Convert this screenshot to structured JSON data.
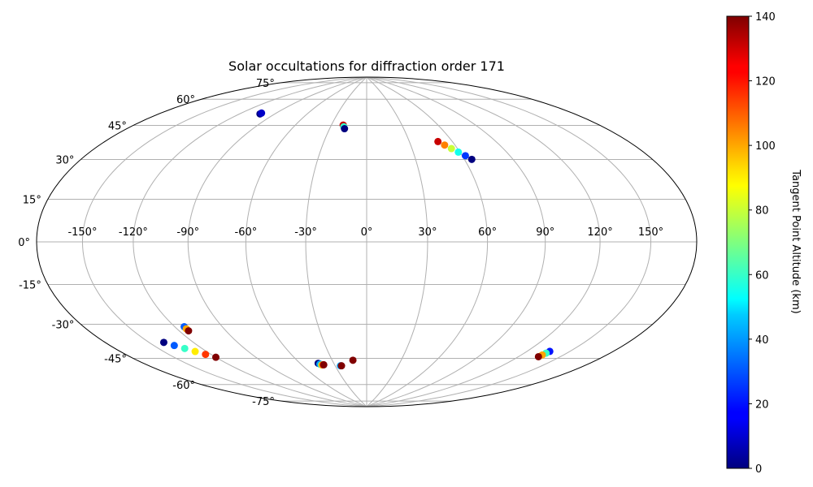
{
  "chart_data": {
    "type": "scatter",
    "projection": "hammer",
    "title": "Solar occultations for diffraction order 171",
    "grid": true,
    "lon_ticks": [
      "-150°",
      "-120°",
      "-90°",
      "-60°",
      "-30°",
      "0°",
      "30°",
      "60°",
      "90°",
      "120°",
      "150°"
    ],
    "lat_ticks": [
      "75°",
      "60°",
      "45°",
      "30°",
      "15°",
      "0°",
      "-15°",
      "-30°",
      "-45°",
      "-60°",
      "-75°"
    ],
    "colorbar": {
      "label": "Tangent Point Altitude (km)",
      "colormap": "jet",
      "range": [
        0,
        140
      ],
      "ticks": [
        "0",
        "20",
        "40",
        "60",
        "80",
        "100",
        "120",
        "140"
      ]
    },
    "series": [
      {
        "lon": [
          -103,
          -103
        ],
        "lat": [
          62,
          62.5
        ],
        "altitude": [
          0,
          10
        ]
      },
      {
        "lon": [
          -20,
          -19,
          -18
        ],
        "lat": [
          60,
          59,
          58
        ],
        "altitude": [
          130,
          60,
          0
        ]
      },
      {
        "lon": [
          50,
          53,
          56,
          59,
          62,
          64.5
        ],
        "lat": [
          50,
          48,
          46,
          44,
          42,
          40
        ],
        "altitude": [
          130,
          105,
          80,
          55,
          25,
          0
        ]
      },
      {
        "lon": [
          -140,
          -136,
          -132,
          -128,
          -124,
          -120
        ],
        "lat": [
          -43,
          -45,
          -47,
          -49,
          -51,
          -53
        ],
        "altitude": [
          0,
          30,
          60,
          90,
          115,
          140
        ]
      },
      {
        "lon": [
          -114,
          -114,
          -114
        ],
        "lat": [
          -38,
          -39,
          -40
        ],
        "altitude": [
          30,
          100,
          140
        ]
      },
      {
        "lon": [
          -44,
          -43,
          -42,
          -41,
          -40
        ],
        "lat": [
          -62,
          -62.5,
          -63,
          -63,
          -63
        ],
        "altitude": [
          0,
          40,
          80,
          110,
          140
        ]
      },
      {
        "lon": [
          -25,
          -24
        ],
        "lat": [
          -64,
          -64
        ],
        "altitude": [
          40,
          140
        ]
      },
      {
        "lon": [
          -12
        ],
        "lat": [
          -61
        ],
        "altitude": [
          140
        ]
      },
      {
        "lon": [
          136,
          135.5,
          135,
          134.5
        ],
        "lat": [
          -48,
          -49,
          -50,
          -51
        ],
        "altitude": [
          20,
          60,
          100,
          140
        ]
      }
    ]
  }
}
